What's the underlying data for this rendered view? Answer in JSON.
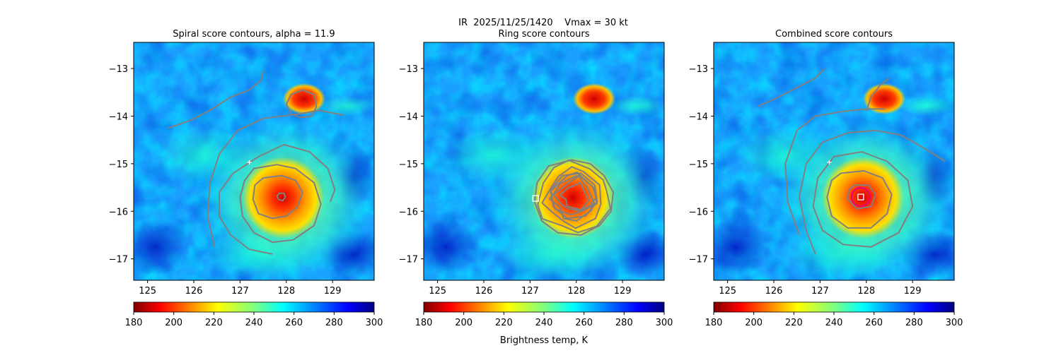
{
  "suptitle": "IR  2025/11/25/1420    Vmax = 30 kt",
  "colorbar_label": "Brightness temp, K",
  "colors": {
    "contour": "#808080",
    "center_marker": "#ffffff",
    "best_ring": "#e6007e"
  },
  "chart_data": [
    {
      "type": "heatmap",
      "title": "Spiral score contours, alpha = 11.9",
      "xlim": [
        124.7,
        129.9
      ],
      "ylim": [
        -17.45,
        -12.45
      ],
      "xticks": [
        125,
        126,
        127,
        128,
        129
      ],
      "yticks": [
        -13,
        -14,
        -15,
        -16,
        -17
      ],
      "colorbar": {
        "cmap": "jet_r",
        "range": [
          180,
          300
        ],
        "ticks": [
          180,
          200,
          220,
          240,
          260,
          280,
          300
        ]
      },
      "contours": [
        {
          "level": "inner",
          "points": [
            [
              127.85,
              -15.62
            ],
            [
              127.95,
              -15.62
            ],
            [
              127.98,
              -15.7
            ],
            [
              127.92,
              -15.78
            ],
            [
              127.83,
              -15.75
            ],
            [
              127.8,
              -15.68
            ]
          ]
        },
        {
          "level": "mid",
          "points": [
            [
              127.5,
              -15.3
            ],
            [
              127.9,
              -15.25
            ],
            [
              128.2,
              -15.35
            ],
            [
              128.35,
              -15.6
            ],
            [
              128.25,
              -15.9
            ],
            [
              128.0,
              -16.1
            ],
            [
              127.7,
              -16.15
            ],
            [
              127.4,
              -16.05
            ],
            [
              127.28,
              -15.75
            ],
            [
              127.32,
              -15.45
            ]
          ]
        },
        {
          "level": "outer",
          "points": [
            [
              127.3,
              -15.1
            ],
            [
              127.8,
              -15.02
            ],
            [
              128.2,
              -15.1
            ],
            [
              128.6,
              -15.4
            ],
            [
              128.75,
              -15.85
            ],
            [
              128.6,
              -16.3
            ],
            [
              128.15,
              -16.6
            ],
            [
              127.7,
              -16.65
            ],
            [
              127.3,
              -16.45
            ],
            [
              127.05,
              -16.1
            ],
            [
              127.0,
              -15.7
            ],
            [
              127.1,
              -15.35
            ]
          ]
        },
        {
          "level": "spiral",
          "closed": false,
          "points": [
            [
              127.7,
              -16.9
            ],
            [
              127.2,
              -16.8
            ],
            [
              126.8,
              -16.5
            ],
            [
              126.55,
              -16.1
            ],
            [
              126.55,
              -15.6
            ],
            [
              126.85,
              -15.2
            ],
            [
              127.4,
              -14.85
            ],
            [
              127.95,
              -14.6
            ],
            [
              128.5,
              -14.75
            ],
            [
              128.9,
              -15.1
            ],
            [
              129.05,
              -15.55
            ],
            [
              128.95,
              -15.8
            ]
          ]
        },
        {
          "level": "outer-spiral",
          "closed": false,
          "points": [
            [
              126.45,
              -16.75
            ],
            [
              126.3,
              -16.1
            ],
            [
              126.35,
              -15.4
            ],
            [
              126.55,
              -14.8
            ],
            [
              126.95,
              -14.3
            ],
            [
              127.5,
              -14.05
            ],
            [
              127.9,
              -14.0
            ],
            [
              128.3,
              -13.95
            ],
            [
              128.7,
              -13.88
            ],
            [
              129.25,
              -13.98
            ]
          ]
        },
        {
          "level": "north-arm",
          "closed": false,
          "points": [
            [
              125.45,
              -14.25
            ],
            [
              125.9,
              -14.1
            ],
            [
              126.4,
              -13.85
            ],
            [
              126.8,
              -13.6
            ],
            [
              127.2,
              -13.45
            ],
            [
              127.45,
              -13.25
            ],
            [
              127.5,
              -13.05
            ]
          ]
        },
        {
          "level": "north-cell",
          "points": [
            [
              128.0,
              -13.75
            ],
            [
              128.1,
              -13.55
            ],
            [
              128.35,
              -13.45
            ],
            [
              128.6,
              -13.55
            ],
            [
              128.65,
              -13.8
            ],
            [
              128.55,
              -14.0
            ],
            [
              128.3,
              -14.03
            ],
            [
              128.1,
              -13.95
            ]
          ]
        }
      ],
      "markers": [
        {
          "kind": "plus",
          "lon": 127.2,
          "lat": -14.97
        }
      ]
    },
    {
      "type": "heatmap",
      "title": "Ring score contours",
      "xlim": [
        124.7,
        129.9
      ],
      "ylim": [
        -17.45,
        -12.45
      ],
      "xticks": [
        125,
        126,
        127,
        128,
        129
      ],
      "yticks": [
        -13,
        -14,
        -15,
        -16,
        -17
      ],
      "colorbar": {
        "cmap": "jet_r",
        "range": [
          180,
          300
        ],
        "ticks": [
          180,
          200,
          220,
          240,
          260,
          280,
          300
        ]
      },
      "contours": [
        {
          "level": "ring-field",
          "points": [
            [
              127.4,
              -15.05
            ],
            [
              127.9,
              -14.92
            ],
            [
              128.3,
              -15.0
            ],
            [
              128.6,
              -15.25
            ],
            [
              128.8,
              -15.6
            ],
            [
              128.75,
              -16.0
            ],
            [
              128.5,
              -16.3
            ],
            [
              128.1,
              -16.5
            ],
            [
              127.6,
              -16.45
            ],
            [
              127.25,
              -16.2
            ],
            [
              127.1,
              -15.8
            ],
            [
              127.15,
              -15.4
            ]
          ]
        },
        {
          "level": "ring-inner",
          "points": [
            [
              127.7,
              -15.25
            ],
            [
              128.1,
              -15.2
            ],
            [
              128.4,
              -15.45
            ],
            [
              128.45,
              -15.8
            ],
            [
              128.2,
              -16.1
            ],
            [
              127.8,
              -16.15
            ],
            [
              127.5,
              -15.9
            ],
            [
              127.45,
              -15.55
            ]
          ]
        }
      ],
      "markers": [
        {
          "kind": "square",
          "lon": 127.12,
          "lat": -15.73
        }
      ]
    },
    {
      "type": "heatmap",
      "title": "Combined score contours",
      "xlim": [
        124.7,
        129.9
      ],
      "ylim": [
        -17.45,
        -12.45
      ],
      "xticks": [
        125,
        126,
        127,
        128,
        129
      ],
      "yticks": [
        -13,
        -14,
        -15,
        -16,
        -17
      ],
      "colorbar": {
        "cmap": "jet_r",
        "range": [
          180,
          300
        ],
        "ticks": [
          180,
          200,
          220,
          240,
          260,
          280,
          300
        ]
      },
      "contours": [
        {
          "level": "inner",
          "points": [
            [
              127.75,
              -15.45
            ],
            [
              128.05,
              -15.45
            ],
            [
              128.2,
              -15.65
            ],
            [
              128.1,
              -15.9
            ],
            [
              127.8,
              -15.95
            ],
            [
              127.6,
              -15.75
            ],
            [
              127.62,
              -15.55
            ]
          ]
        },
        {
          "level": "mid",
          "points": [
            [
              127.45,
              -15.2
            ],
            [
              127.95,
              -15.15
            ],
            [
              128.35,
              -15.3
            ],
            [
              128.55,
              -15.65
            ],
            [
              128.45,
              -16.05
            ],
            [
              128.1,
              -16.35
            ],
            [
              127.6,
              -16.35
            ],
            [
              127.25,
              -16.1
            ],
            [
              127.15,
              -15.7
            ],
            [
              127.25,
              -15.35
            ]
          ]
        },
        {
          "level": "outer",
          "points": [
            [
              127.3,
              -14.85
            ],
            [
              127.9,
              -14.75
            ],
            [
              128.45,
              -14.95
            ],
            [
              128.9,
              -15.35
            ],
            [
              129.0,
              -15.9
            ],
            [
              128.7,
              -16.45
            ],
            [
              128.1,
              -16.75
            ],
            [
              127.5,
              -16.7
            ],
            [
              127.05,
              -16.4
            ],
            [
              126.85,
              -15.9
            ],
            [
              126.95,
              -15.3
            ]
          ]
        },
        {
          "level": "spiral",
          "closed": false,
          "points": [
            [
              126.9,
              -16.9
            ],
            [
              126.7,
              -16.4
            ],
            [
              126.55,
              -15.7
            ],
            [
              126.7,
              -15.0
            ],
            [
              127.05,
              -14.55
            ],
            [
              127.6,
              -14.35
            ],
            [
              128.2,
              -14.3
            ],
            [
              128.75,
              -14.4
            ],
            [
              129.3,
              -14.7
            ],
            [
              129.7,
              -14.95
            ]
          ]
        },
        {
          "level": "outer-spiral",
          "closed": false,
          "points": [
            [
              126.55,
              -16.5
            ],
            [
              126.3,
              -15.8
            ],
            [
              126.25,
              -15.0
            ],
            [
              126.5,
              -14.3
            ],
            [
              126.9,
              -14.0
            ],
            [
              127.5,
              -13.9
            ],
            [
              128.0,
              -13.85
            ],
            [
              128.4,
              -13.85
            ]
          ]
        },
        {
          "level": "north-arm",
          "closed": false,
          "points": [
            [
              125.65,
              -13.8
            ],
            [
              126.1,
              -13.6
            ],
            [
              126.5,
              -13.4
            ],
            [
              126.9,
              -13.2
            ],
            [
              127.1,
              -13.0
            ]
          ]
        },
        {
          "level": "north-arm-2",
          "closed": false,
          "points": [
            [
              128.0,
              -13.9
            ],
            [
              128.1,
              -13.6
            ],
            [
              128.3,
              -13.35
            ],
            [
              128.5,
              -13.2
            ]
          ]
        }
      ],
      "markers": [
        {
          "kind": "plus",
          "lon": 127.2,
          "lat": -14.97
        },
        {
          "kind": "square",
          "lon": 127.88,
          "lat": -15.7
        }
      ],
      "best_ring": {
        "lon": 127.88,
        "lat": -15.7,
        "radius_deg": 0.2
      }
    }
  ]
}
